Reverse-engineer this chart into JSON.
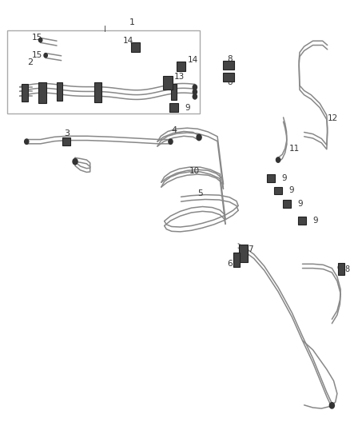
{
  "bg_color": "#ffffff",
  "line_color": "#888888",
  "dark_color": "#333333",
  "figsize": [
    4.38,
    5.33
  ],
  "dpi": 100,
  "lw": 1.1,
  "clamp_fc": "#444444",
  "clamp_ec": "#222222"
}
